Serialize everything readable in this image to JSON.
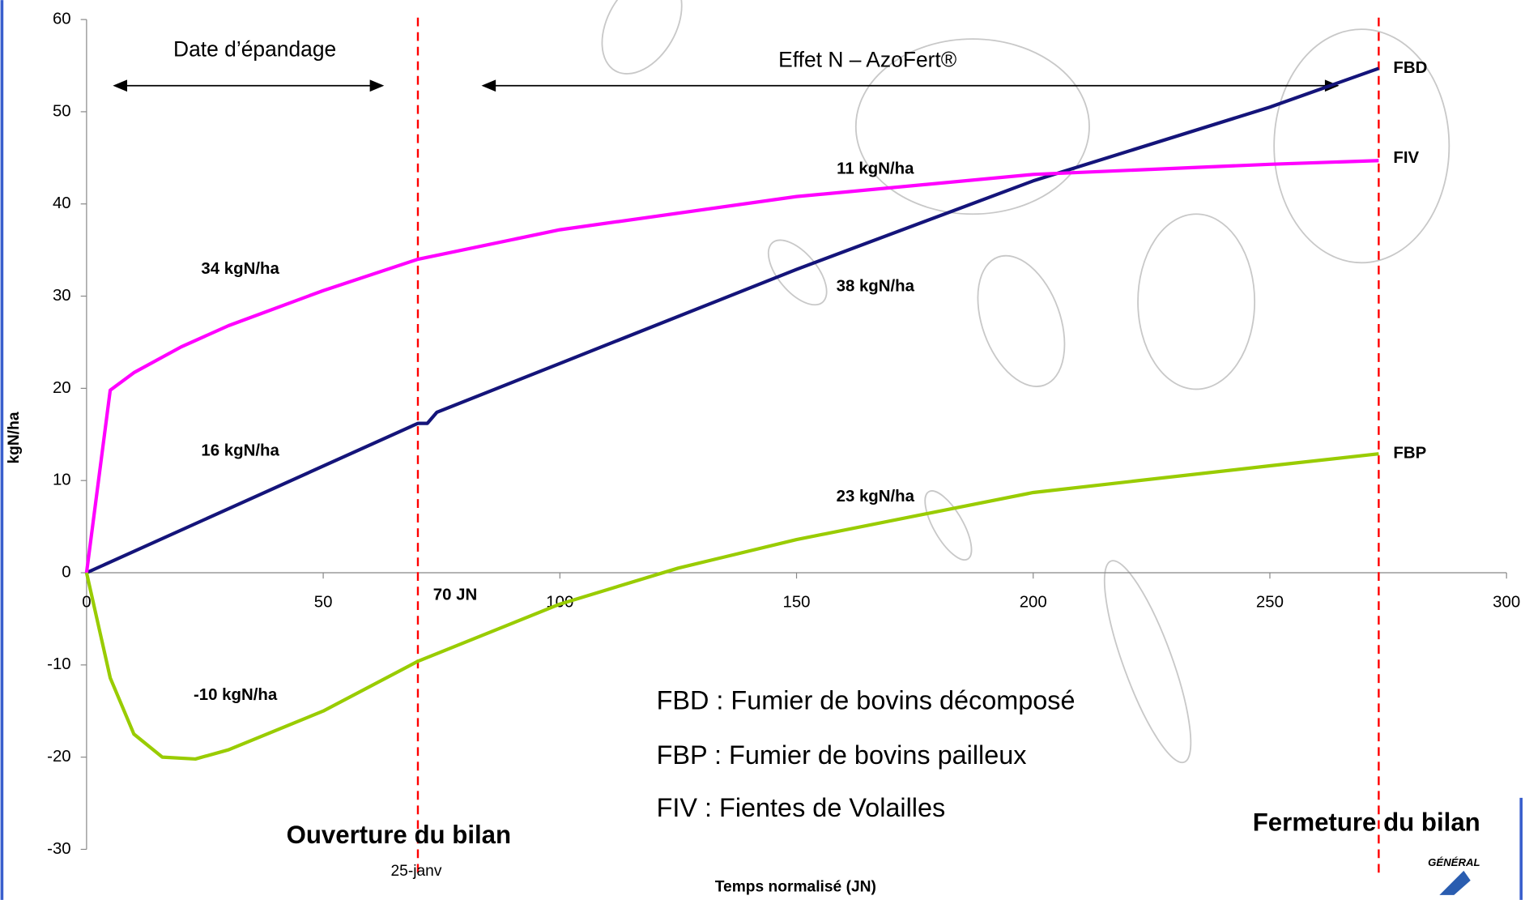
{
  "chart_data": {
    "type": "line",
    "x_label": "Temps normalisé (JN)",
    "y_label": "kgN/ha",
    "xlim": [
      0,
      300
    ],
    "xticks": [
      0,
      50,
      100,
      150,
      200,
      250,
      300
    ],
    "ylim": [
      -30,
      60
    ],
    "yticks": [
      -30,
      -20,
      -10,
      0,
      10,
      20,
      30,
      40,
      50,
      60
    ],
    "reference_lines": {
      "x": [
        70,
        273
      ],
      "color": "#ff0000"
    },
    "series": [
      {
        "name": "FBD",
        "color": "#14147a",
        "x": [
          0,
          70,
          72,
          74,
          100,
          150,
          200,
          250,
          273
        ],
        "values": [
          0,
          16.2,
          16.2,
          17.4,
          22.7,
          32.9,
          42.5,
          50.5,
          54.7
        ]
      },
      {
        "name": "FIV",
        "color": "#ff00ff",
        "x": [
          0,
          5,
          10,
          20,
          30,
          50,
          70,
          100,
          150,
          200,
          250,
          273
        ],
        "values": [
          0,
          19.8,
          21.7,
          24.5,
          26.8,
          30.6,
          34,
          37.2,
          40.8,
          43.2,
          44.3,
          44.7
        ]
      },
      {
        "name": "FBP",
        "color": "#99cc00",
        "x": [
          0,
          5,
          10,
          16,
          23,
          30,
          50,
          70,
          100,
          125,
          150,
          200,
          250,
          273
        ],
        "values": [
          0,
          -11.4,
          -17.5,
          -20,
          -20.2,
          -19.2,
          -15,
          -9.6,
          -3.4,
          0.5,
          3.6,
          8.7,
          11.6,
          12.9
        ]
      }
    ],
    "annotations": [
      "Date d’épandage",
      "Effet N – AzoFert®",
      "34 kgN/ha",
      "16 kgN/ha",
      "-10 kgN/ha",
      "11 kgN/ha",
      "38 kgN/ha",
      "23 kgN/ha",
      "70 JN",
      "25-janv",
      "Ouverture du bilan",
      "Fermeture du bilan",
      "FBD : Fumier de bovins décomposé",
      "FBP : Fumier de bovins pailleux",
      "FIV : Fientes de Volailles"
    ]
  }
}
